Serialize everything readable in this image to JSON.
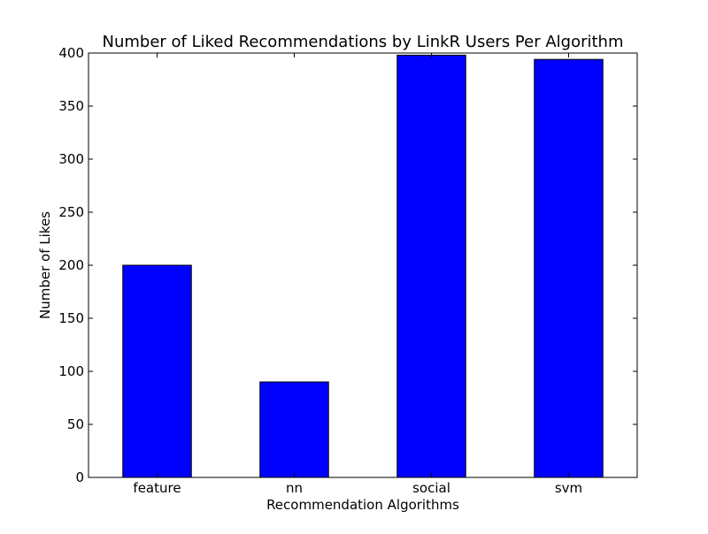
{
  "chart_data": {
    "type": "bar",
    "title": "Number of Liked Recommendations by LinkR Users Per Algorithm",
    "xlabel": "Recommendation Algorithms",
    "ylabel": "Number of Likes",
    "categories": [
      "feature",
      "nn",
      "social",
      "svm"
    ],
    "values": [
      200,
      90,
      398,
      394
    ],
    "ylim": [
      0,
      400
    ],
    "yticks": [
      0,
      50,
      100,
      150,
      200,
      250,
      300,
      350,
      400
    ],
    "grid": false,
    "legend": "none",
    "bar_color": "#0000ff",
    "edge_color": "#000000"
  }
}
